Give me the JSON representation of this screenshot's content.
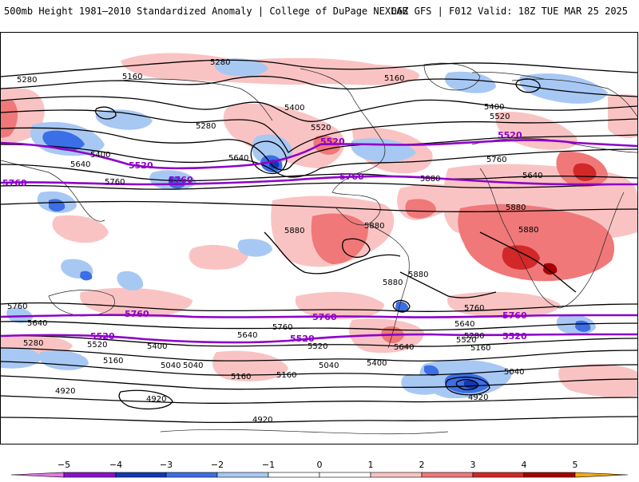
{
  "header": {
    "left_title": "500mb Height 1981–2010 Standardized Anomaly | College of DuPage NEXLAB",
    "right_title": "06Z GFS | F012 Valid: 18Z TUE MAR 25 2025"
  },
  "map": {
    "projection": "global cylindrical",
    "field": "500mb geopotential height with standardized anomaly shading",
    "contour_color": "#000000",
    "highlight_contour_color": "#8e00c8",
    "highlighted_contours": [
      "5520",
      "5760"
    ],
    "contour_labels": [
      "5280",
      "5160",
      "5400",
      "5280",
      "5520",
      "5400",
      "5640",
      "5520",
      "5760",
      "5640",
      "5880",
      "5280",
      "5160",
      "5400",
      "5520",
      "5640",
      "5760",
      "5880",
      "5880",
      "5880",
      "5880",
      "5760",
      "5640",
      "5520",
      "5400",
      "5160",
      "5040",
      "4920",
      "5640",
      "5520",
      "5400",
      "5280",
      "5160",
      "5040",
      "4920",
      "5760",
      "5520",
      "5400",
      "5280",
      "5160",
      "5040",
      "4920",
      "5640",
      "5520",
      "5280",
      "5160",
      "5400",
      "5640",
      "5760",
      "5880",
      "5880",
      "5040",
      "4920"
    ],
    "purple_labels": [
      "5520",
      "5760",
      "5520",
      "5760",
      "5760",
      "5520",
      "5520",
      "5760",
      "5760",
      "5520",
      "5760",
      "5520"
    ]
  },
  "colorbar": {
    "ticks": [
      "−5",
      "−4",
      "−3",
      "−2",
      "−1",
      "0",
      "1",
      "2",
      "3",
      "4",
      "5"
    ],
    "colors": {
      "lt_m5": "#e079e6",
      "m5_m4": "#8a14c8",
      "m4_m3": "#1238b4",
      "m3_m2": "#3c6ee6",
      "m2_m1": "#a8c8f4",
      "m1_0": "#ffffff",
      "p0_p1": "#ffffff",
      "p1_p2": "#fac3c3",
      "p2_p3": "#f07878",
      "p3_p4": "#d22828",
      "p4_p5": "#a50000",
      "gt_p5": "#f5aa10"
    }
  }
}
